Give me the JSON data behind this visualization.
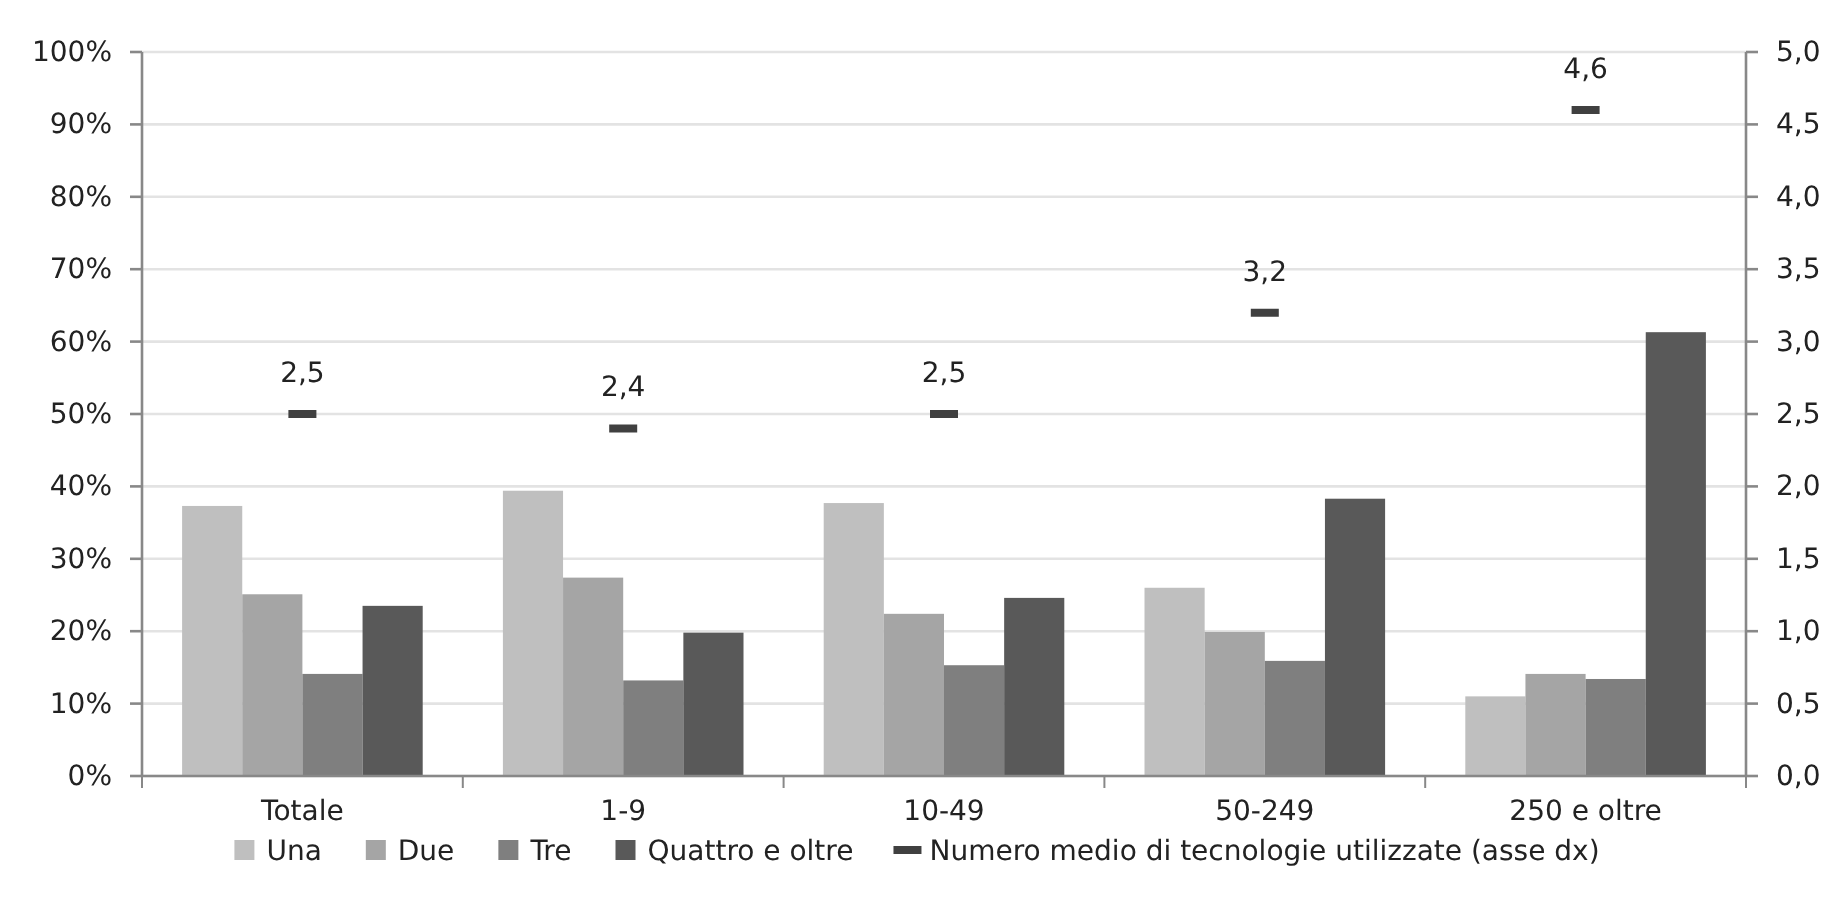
{
  "chart_data": {
    "type": "bar",
    "categories": [
      "Totale",
      "1-9",
      "10-49",
      "50-249",
      "250 e oltre"
    ],
    "series": [
      {
        "name": "Una",
        "color": "#bfbfbf",
        "values": [
          37.3,
          39.4,
          37.7,
          26.0,
          11.0
        ]
      },
      {
        "name": "Due",
        "color": "#a5a5a5",
        "values": [
          25.1,
          27.4,
          22.4,
          19.9,
          14.1
        ]
      },
      {
        "name": "Tre",
        "color": "#7f7f7f",
        "values": [
          14.1,
          13.2,
          15.3,
          15.9,
          13.4
        ]
      },
      {
        "name": "Quattro e oltre",
        "color": "#595959",
        "values": [
          23.5,
          19.8,
          24.6,
          38.3,
          61.3
        ]
      },
      {
        "name": "Numero medio di tecnologie utilizzate (asse dx)",
        "type": "scatter",
        "axis": "y2",
        "color": "#404040",
        "values": [
          2.5,
          2.4,
          2.5,
          3.2,
          4.6
        ],
        "value_labels": [
          "2,5",
          "2,4",
          "2,5",
          "3,2",
          "4,6"
        ]
      }
    ],
    "ylim": [
      0,
      100
    ],
    "yticks": [
      {
        "value": 0,
        "label": "0%"
      },
      {
        "value": 10,
        "label": "10%"
      },
      {
        "value": 20,
        "label": "20%"
      },
      {
        "value": 30,
        "label": "30%"
      },
      {
        "value": 40,
        "label": "40%"
      },
      {
        "value": 50,
        "label": "50%"
      },
      {
        "value": 60,
        "label": "60%"
      },
      {
        "value": 70,
        "label": "70%"
      },
      {
        "value": 80,
        "label": "80%"
      },
      {
        "value": 90,
        "label": "90%"
      },
      {
        "value": 100,
        "label": "100%"
      }
    ],
    "y2lim": [
      0,
      5
    ],
    "y2ticks": [
      {
        "value": 0,
        "label": "0,0"
      },
      {
        "value": 0.5,
        "label": "0,5"
      },
      {
        "value": 1,
        "label": "1,0"
      },
      {
        "value": 1.5,
        "label": "1,5"
      },
      {
        "value": 2,
        "label": "2,0"
      },
      {
        "value": 2.5,
        "label": "2,5"
      },
      {
        "value": 3,
        "label": "3,0"
      },
      {
        "value": 3.5,
        "label": "3,5"
      },
      {
        "value": 4,
        "label": "4,0"
      },
      {
        "value": 4.5,
        "label": "4,5"
      },
      {
        "value": 5,
        "label": "5,0"
      }
    ],
    "grid": "y",
    "legend": "bottom"
  }
}
